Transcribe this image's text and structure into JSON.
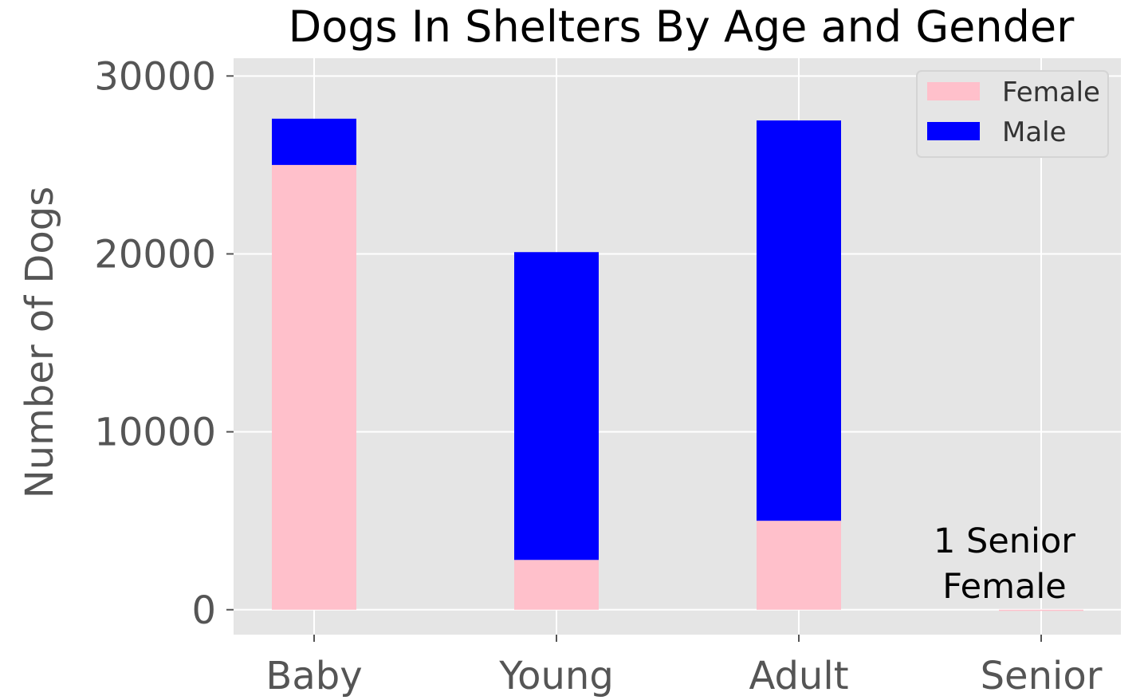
{
  "chart_data": {
    "type": "bar",
    "stacked": true,
    "title": "Dogs In Shelters By Age and Gender",
    "xlabel": "",
    "ylabel": "Number of Dogs",
    "categories": [
      "Baby",
      "Young",
      "Adult",
      "Senior"
    ],
    "series": [
      {
        "name": "Female",
        "color": "#ffc0cb",
        "values": [
          25000,
          2800,
          5000,
          1
        ]
      },
      {
        "name": "Male",
        "color": "#0000ff",
        "values": [
          2600,
          17300,
          22500,
          0
        ]
      }
    ],
    "ylim": [
      -1400,
      31000
    ],
    "yticks": [
      0,
      10000,
      20000,
      30000
    ],
    "ytick_labels": [
      "0",
      "10000",
      "20000",
      "30000"
    ],
    "grid": true,
    "legend_position": "top-right",
    "annotation": {
      "lines": [
        "1 Senior",
        "Female"
      ],
      "category": "Senior"
    },
    "colors": {
      "plot_background": "#e5e5e5",
      "grid": "#ffffff",
      "axis_text": "#555555",
      "title_text": "#000000"
    }
  }
}
